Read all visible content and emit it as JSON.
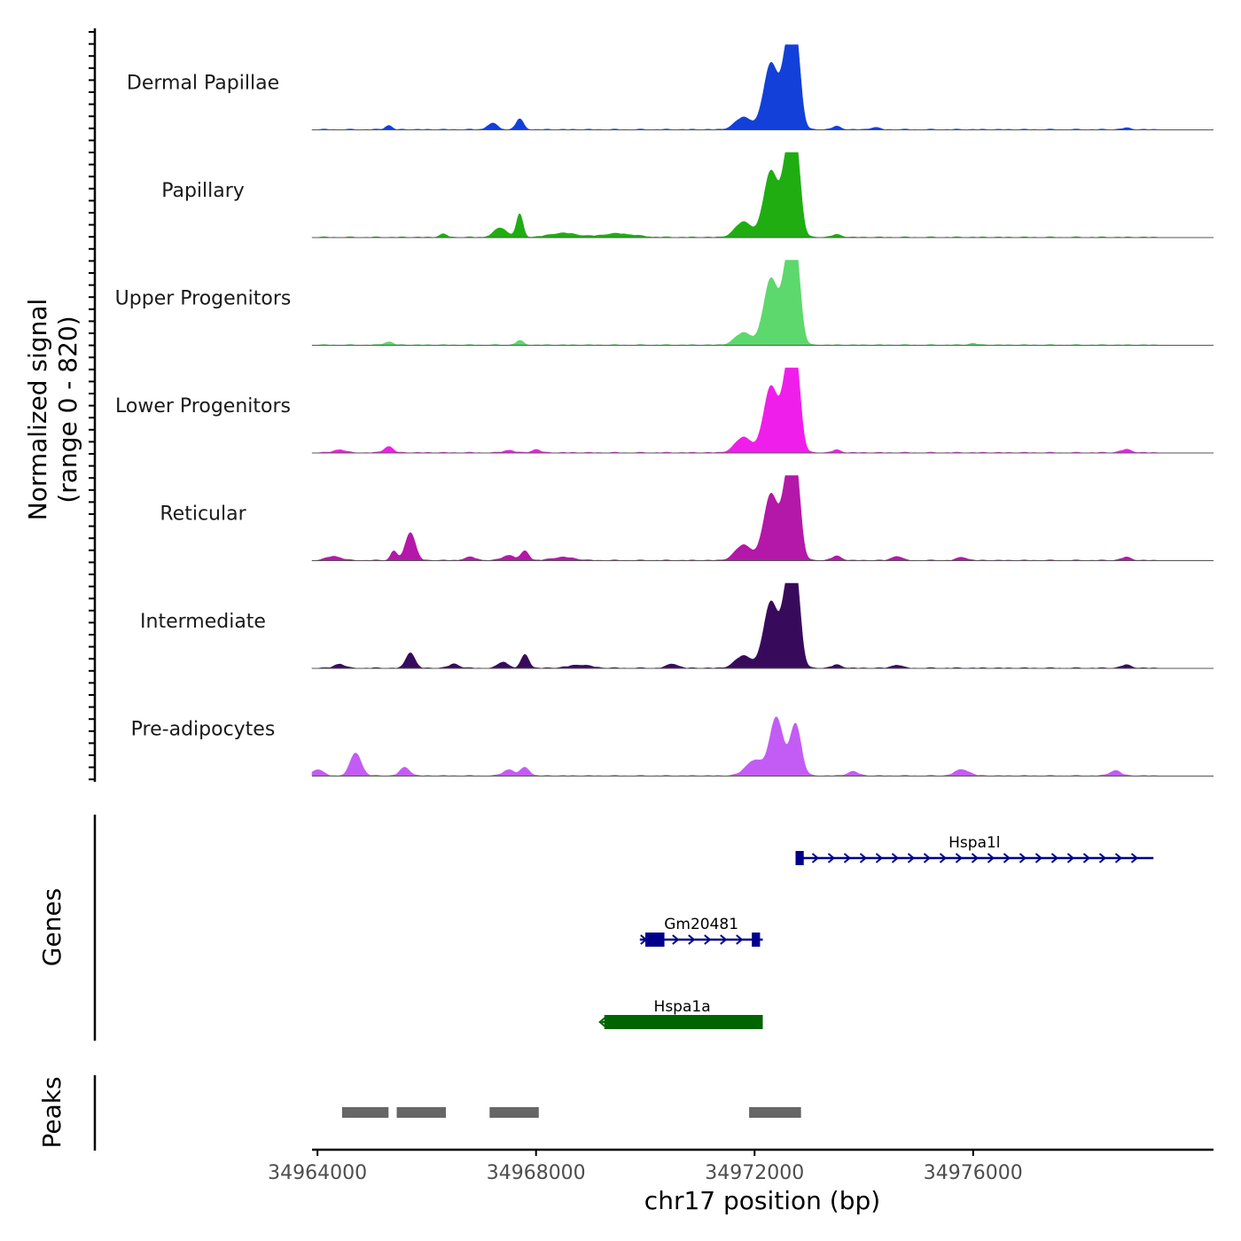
{
  "chart_data": {
    "type": "area",
    "title": "",
    "ylabel_line1": "Normalized signal",
    "ylabel_line2": "(range 0 - 820)",
    "ylim": [
      0,
      820
    ],
    "xlabel": "chr17 position (bp)",
    "xlim": [
      34963900,
      34980400
    ],
    "xticks": [
      34964000,
      34968000,
      34972000,
      34976000
    ],
    "xtick_labels": [
      "34964000",
      "34968000",
      "34972000",
      "34976000"
    ],
    "series": [
      {
        "name": "Dermal Papillae",
        "color": "#1240d8",
        "peaks": [
          [
            34965300,
            40,
            60
          ],
          [
            34967200,
            60,
            90
          ],
          [
            34967700,
            100,
            70
          ],
          [
            34971800,
            120,
            150
          ],
          [
            34972300,
            640,
            130
          ],
          [
            34972600,
            680,
            100
          ],
          [
            34972750,
            820,
            90
          ],
          [
            34973500,
            30,
            80
          ],
          [
            34974200,
            20,
            80
          ],
          [
            34978800,
            15,
            80
          ]
        ]
      },
      {
        "name": "Papillary",
        "color": "#1fad12",
        "peaks": [
          [
            34966300,
            30,
            70
          ],
          [
            34967350,
            90,
            120
          ],
          [
            34967700,
            220,
            60
          ],
          [
            34968500,
            40,
            250
          ],
          [
            34969500,
            35,
            300
          ],
          [
            34971800,
            150,
            150
          ],
          [
            34972300,
            640,
            130
          ],
          [
            34972600,
            680,
            100
          ],
          [
            34972750,
            820,
            90
          ],
          [
            34973500,
            25,
            90
          ]
        ]
      },
      {
        "name": "Upper Progenitors",
        "color": "#5dd86c",
        "peaks": [
          [
            34965300,
            30,
            80
          ],
          [
            34967700,
            40,
            70
          ],
          [
            34971800,
            120,
            150
          ],
          [
            34972300,
            640,
            130
          ],
          [
            34972600,
            680,
            100
          ],
          [
            34972750,
            820,
            90
          ],
          [
            34976000,
            15,
            80
          ]
        ]
      },
      {
        "name": "Lower Progenitors",
        "color": "#f01eea",
        "peaks": [
          [
            34964400,
            30,
            100
          ],
          [
            34965300,
            60,
            80
          ],
          [
            34967500,
            25,
            90
          ],
          [
            34968000,
            30,
            80
          ],
          [
            34971800,
            150,
            150
          ],
          [
            34972300,
            640,
            130
          ],
          [
            34972600,
            680,
            100
          ],
          [
            34972750,
            820,
            90
          ],
          [
            34973500,
            25,
            80
          ],
          [
            34978800,
            30,
            100
          ]
        ]
      },
      {
        "name": "Reticular",
        "color": "#b418a8",
        "peaks": [
          [
            34964300,
            40,
            130
          ],
          [
            34965400,
            90,
            60
          ],
          [
            34965700,
            270,
            90
          ],
          [
            34966800,
            30,
            110
          ],
          [
            34967500,
            50,
            110
          ],
          [
            34967800,
            90,
            70
          ],
          [
            34968500,
            30,
            200
          ],
          [
            34971800,
            150,
            150
          ],
          [
            34972300,
            640,
            130
          ],
          [
            34972600,
            680,
            100
          ],
          [
            34972750,
            820,
            90
          ],
          [
            34973500,
            40,
            90
          ],
          [
            34974600,
            40,
            90
          ],
          [
            34975800,
            30,
            90
          ],
          [
            34978800,
            30,
            90
          ]
        ]
      },
      {
        "name": "Intermediate",
        "color": "#380a5c",
        "peaks": [
          [
            34964400,
            40,
            90
          ],
          [
            34965700,
            150,
            80
          ],
          [
            34966500,
            40,
            90
          ],
          [
            34967400,
            60,
            90
          ],
          [
            34967800,
            130,
            70
          ],
          [
            34968800,
            30,
            200
          ],
          [
            34970500,
            40,
            100
          ],
          [
            34971800,
            120,
            150
          ],
          [
            34972300,
            640,
            130
          ],
          [
            34972600,
            680,
            100
          ],
          [
            34972750,
            820,
            90
          ],
          [
            34973500,
            30,
            90
          ],
          [
            34974600,
            30,
            90
          ],
          [
            34978800,
            30,
            90
          ]
        ]
      },
      {
        "name": "Pre-adipocytes",
        "color": "#c35cf4",
        "peaks": [
          [
            34964000,
            60,
            100
          ],
          [
            34964700,
            220,
            100
          ],
          [
            34965600,
            80,
            90
          ],
          [
            34967500,
            60,
            100
          ],
          [
            34967800,
            80,
            80
          ],
          [
            34972000,
            150,
            160
          ],
          [
            34972400,
            560,
            120
          ],
          [
            34972750,
            500,
            100
          ],
          [
            34973800,
            40,
            100
          ],
          [
            34975800,
            60,
            130
          ],
          [
            34978600,
            50,
            100
          ]
        ]
      }
    ],
    "genes_track_label": "Genes",
    "genes": [
      {
        "name": "Hspa1l",
        "start": 34972750,
        "end": 34979300,
        "strand": "+",
        "color": "#00008b",
        "exons": [
          [
            34972750,
            34972900
          ]
        ]
      },
      {
        "name": "Gm20481",
        "start": 34969900,
        "end": 34972150,
        "strand": "+",
        "color": "#00008b",
        "exons": [
          [
            34970000,
            34970350
          ],
          [
            34971950,
            34972100
          ]
        ]
      },
      {
        "name": "Hspa1a",
        "start": 34969200,
        "end": 34972150,
        "strand": "-",
        "color": "#006400",
        "exons": [
          [
            34969250,
            34972150
          ]
        ]
      }
    ],
    "peaks_track_label": "Peaks",
    "peak_regions": [
      [
        34964450,
        34965300
      ],
      [
        34965450,
        34966350
      ],
      [
        34967150,
        34968050
      ],
      [
        34971900,
        34972850
      ]
    ],
    "peak_color": "#666666"
  }
}
